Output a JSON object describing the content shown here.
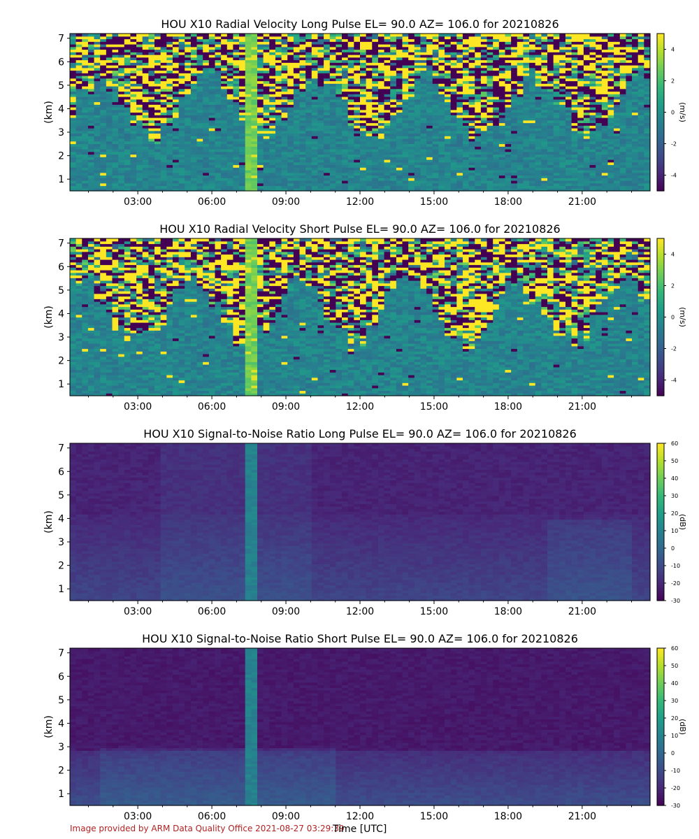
{
  "footer_text": "Image provided by ARM Data Quality Office 2021-08-27 03:29:39",
  "x_axis_title": "Time [UTC]",
  "chart_data": [
    {
      "type": "heatmap",
      "title": "HOU X10 Radial Velocity Long Pulse EL= 90.0 AZ= 106.0 for 20210826",
      "ylabel": "(km)",
      "colorbar_label": "(m/s)",
      "field": "velocity",
      "x_range_hours": [
        0.25,
        23.75
      ],
      "ylim": [
        0.5,
        7.2
      ],
      "y_ticks": [
        1,
        2,
        3,
        4,
        5,
        6,
        7
      ],
      "x_ticks": [
        "03:00",
        "06:00",
        "09:00",
        "12:00",
        "15:00",
        "18:00",
        "21:00"
      ],
      "clim": [
        -5,
        5
      ],
      "colorbar_ticks": [
        4,
        2,
        0,
        -2,
        -4
      ],
      "colormap": "viridis"
    },
    {
      "type": "heatmap",
      "title": "HOU X10 Radial Velocity Short Pulse EL= 90.0 AZ= 106.0 for 20210826",
      "ylabel": "(km)",
      "colorbar_label": "(m/s)",
      "field": "velocity",
      "x_range_hours": [
        0.25,
        23.75
      ],
      "ylim": [
        0.5,
        7.2
      ],
      "y_ticks": [
        1,
        2,
        3,
        4,
        5,
        6,
        7
      ],
      "x_ticks": [
        "03:00",
        "06:00",
        "09:00",
        "12:00",
        "15:00",
        "18:00",
        "21:00"
      ],
      "clim": [
        -5,
        5
      ],
      "colorbar_ticks": [
        4,
        2,
        0,
        -2,
        -4
      ],
      "colormap": "viridis"
    },
    {
      "type": "heatmap",
      "title": "HOU X10 Signal-to-Noise Ratio Long Pulse EL= 90.0 AZ= 106.0 for 20210826",
      "ylabel": "(km)",
      "colorbar_label": "(dB)",
      "field": "snr",
      "x_range_hours": [
        0.25,
        23.75
      ],
      "ylim": [
        0.5,
        7.2
      ],
      "y_ticks": [
        1,
        2,
        3,
        4,
        5,
        6,
        7
      ],
      "x_ticks": [
        "03:00",
        "06:00",
        "09:00",
        "12:00",
        "15:00",
        "18:00",
        "21:00"
      ],
      "clim": [
        -30,
        60
      ],
      "colorbar_ticks": [
        60,
        50,
        40,
        30,
        20,
        10,
        0,
        -10,
        -20,
        -30
      ],
      "colormap": "viridis"
    },
    {
      "type": "heatmap",
      "title": "HOU X10 Signal-to-Noise Ratio Short Pulse EL= 90.0 AZ= 106.0 for 20210826",
      "ylabel": "(km)",
      "colorbar_label": "(dB)",
      "field": "snr",
      "x_range_hours": [
        0.25,
        23.75
      ],
      "ylim": [
        0.5,
        7.2
      ],
      "y_ticks": [
        1,
        2,
        3,
        4,
        5,
        6,
        7
      ],
      "x_ticks": [
        "03:00",
        "06:00",
        "09:00",
        "12:00",
        "15:00",
        "18:00",
        "21:00"
      ],
      "clim": [
        -30,
        60
      ],
      "colorbar_ticks": [
        60,
        50,
        40,
        30,
        20,
        10,
        0,
        -10,
        -20,
        -30
      ],
      "colormap": "viridis"
    }
  ]
}
